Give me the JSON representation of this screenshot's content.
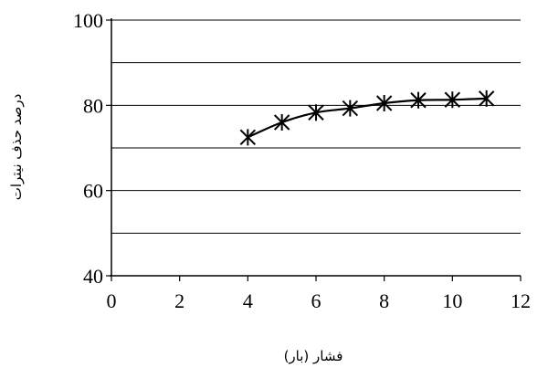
{
  "chart_data": {
    "type": "line",
    "title": "",
    "xlabel": "فشار (بار)",
    "ylabel": "درصد حذف نیترات",
    "xlim": [
      0,
      12
    ],
    "ylim": [
      40,
      100
    ],
    "x_ticks": [
      0,
      2,
      4,
      6,
      8,
      10,
      12
    ],
    "y_ticks": [
      40,
      60,
      80,
      100
    ],
    "y_gridlines": [
      50,
      60,
      70,
      80,
      90,
      100
    ],
    "grid": "horizontal",
    "marker": "asterisk",
    "line_style": "smooth",
    "color": "#000000",
    "series": [
      {
        "x": [
          4,
          5,
          6,
          7,
          8,
          9,
          10,
          11
        ],
        "y": [
          72.5,
          76,
          78.3,
          79.3,
          80.5,
          81.2,
          81.3,
          81.6
        ]
      }
    ]
  }
}
